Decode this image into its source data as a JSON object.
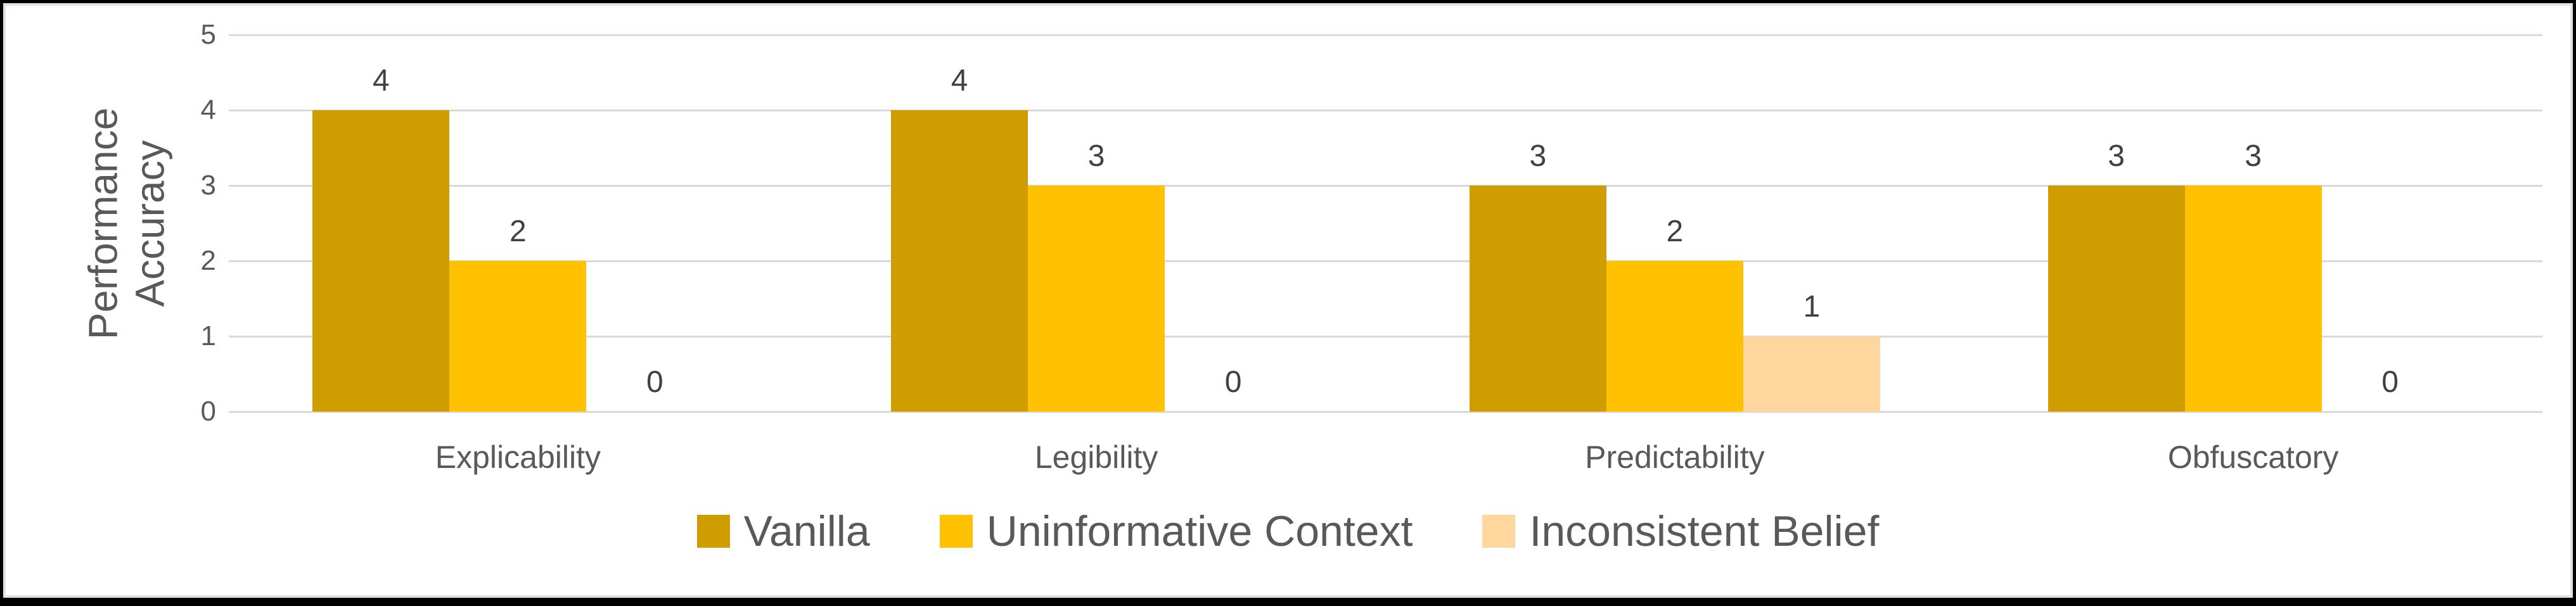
{
  "chart_data": {
    "type": "bar",
    "title": "",
    "categories": [
      "Explicability",
      "Legibility",
      "Predictability",
      "Obfuscatory"
    ],
    "series": [
      {
        "name": "Vanilla",
        "color": "#D09D00",
        "values": [
          4,
          4,
          3,
          3
        ]
      },
      {
        "name": "Uninformative Context",
        "color": "#FFC100",
        "values": [
          2,
          3,
          2,
          3
        ]
      },
      {
        "name": "Inconsistent Belief",
        "color": "#FFD79E",
        "values": [
          0,
          0,
          1,
          0
        ]
      }
    ],
    "xlabel": "",
    "ylabel": "Performance Accuracy",
    "ylabel_lines": [
      "Performance",
      "Accuracy"
    ],
    "ylim": [
      0,
      5
    ],
    "y_ticks": [
      5,
      4,
      3,
      2,
      1,
      0
    ],
    "grid": "horizontal",
    "data_labels": true,
    "legend_position": "bottom"
  },
  "colors": {
    "background": "#FFFFFF",
    "frame_border": "#000000",
    "gridline": "#D9D9D9",
    "axis_text": "#595959",
    "data_label_text": "#404040"
  }
}
